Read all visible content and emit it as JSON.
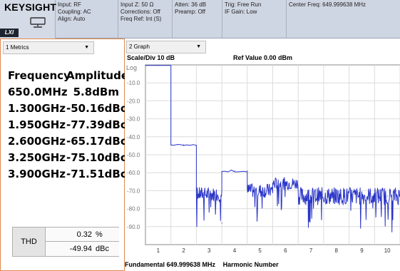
{
  "brand": {
    "name": "KEYSIGHT",
    "lxi_badge": "LXI"
  },
  "status": [
    {
      "lines": [
        "Input: RF",
        "Coupling: AC",
        "Align: Auto"
      ]
    },
    {
      "lines": [
        "Input Z: 50 Ω",
        "Corrections: Off",
        "Freq Ref: Int (S)"
      ]
    },
    {
      "lines": [
        "Atten: 36 dB",
        "Preamp: Off"
      ]
    },
    {
      "lines": [
        "Trig: Free Run",
        "IF Gain: Low"
      ]
    },
    {
      "lines": [
        "Center Freq: 649.999638 MHz"
      ]
    }
  ],
  "metrics_window": {
    "selector": "1 Metrics",
    "headers": [
      "Frequency",
      "Amplitude"
    ],
    "rows": [
      [
        "650.0MHz",
        "5.8dBm"
      ],
      [
        "1.300GHz",
        "-50.16dBc"
      ],
      [
        "1.950GHz",
        "-77.39dBc"
      ],
      [
        "2.600GHz",
        "-65.17dBc"
      ],
      [
        "3.250GHz",
        "-75.10dBc"
      ],
      [
        "3.900GHz",
        "-71.51dBc"
      ]
    ],
    "thd": {
      "label": "THD",
      "percent_value": "0.32",
      "percent_unit": "%",
      "dbc_value": "-49.94",
      "dbc_unit": "dBc"
    }
  },
  "graph_window": {
    "selector": "2 Graph",
    "scale_label": "Scale/Div 10 dB",
    "ref_label": "Ref Value 0.00 dBm",
    "log_label": "Log",
    "footer_freq": "Fundamental 649.999638 MHz",
    "footer_axis": "Harmonic Number"
  },
  "colors": {
    "trace": "#2a35c8",
    "panel_border": "#e08a4e",
    "topbar": "#cfd6e3"
  },
  "chart_data": {
    "type": "line",
    "title": "",
    "xlabel": "Harmonic Number",
    "ylabel": "",
    "x_ticks": [
      "1",
      "2",
      "3",
      "4",
      "5",
      "6",
      "7",
      "8",
      "9",
      "10"
    ],
    "y_ticks": [
      "-10.0",
      "-20.0",
      "-30.0",
      "-40.0",
      "-50.0",
      "-60.0",
      "-70.0",
      "-80.0",
      "-90.0"
    ],
    "xlim": [
      0.5,
      10.5
    ],
    "ylim": [
      -100,
      0
    ],
    "grid": true,
    "series": [
      {
        "x": [
          0.5,
          1,
          1.5,
          2,
          2.5,
          3,
          3.5,
          4,
          4.5,
          5,
          5.5,
          6,
          6.5,
          7,
          7.5,
          8,
          8.5,
          9,
          9.5,
          10,
          10.5
        ],
        "values": [
          -0.3,
          -0.3,
          -44.5,
          -44.5,
          -69,
          -72,
          -88,
          -59,
          -59,
          -70,
          -71,
          -66,
          -68,
          -74,
          -74,
          -75,
          -71,
          -73,
          -72,
          -73,
          -73
        ]
      }
    ]
  }
}
